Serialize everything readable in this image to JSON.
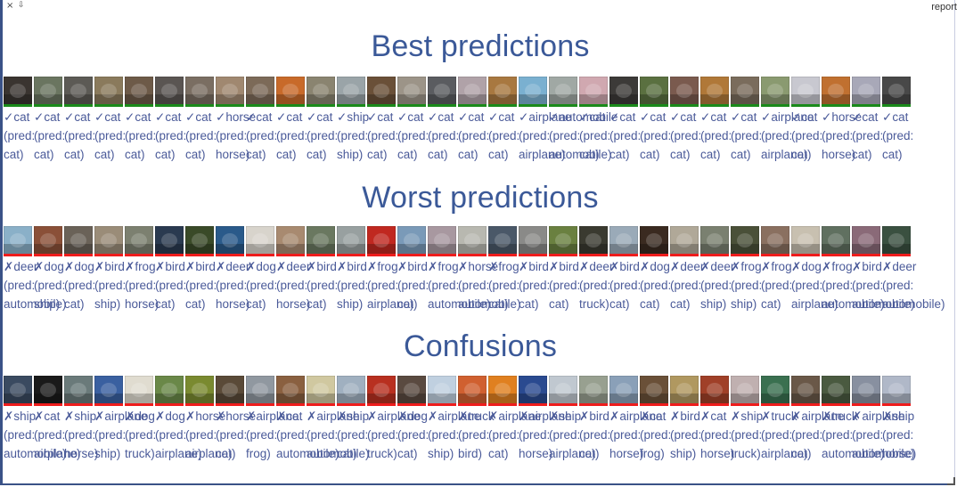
{
  "window": {
    "close_glyph": "×",
    "min_glyph": "⇩",
    "report_label": "report"
  },
  "colors": {
    "accent": "#3b5998",
    "correct_bar": "#1a8a1a",
    "wrong_bar": "#ee1c1c",
    "caption": "#4a5a99"
  },
  "sections": [
    {
      "title": "Best predictions",
      "correct": true,
      "items": [
        {
          "true": "cat",
          "pred": "cat",
          "tone": "#3a3430"
        },
        {
          "true": "cat",
          "pred": "cat",
          "tone": "#6a7560"
        },
        {
          "true": "cat",
          "pred": "cat",
          "tone": "#5c5a55"
        },
        {
          "true": "cat",
          "pred": "cat",
          "tone": "#8a7a5c"
        },
        {
          "true": "cat",
          "pred": "cat",
          "tone": "#6d5a48"
        },
        {
          "true": "cat",
          "pred": "cat",
          "tone": "#5a5552"
        },
        {
          "true": "cat",
          "pred": "cat",
          "tone": "#7a6e62"
        },
        {
          "true": "horse",
          "pred": "horse",
          "tone": "#a08870"
        },
        {
          "true": "cat",
          "pred": "cat",
          "tone": "#7c6a58"
        },
        {
          "true": "cat",
          "pred": "cat",
          "tone": "#c86a2a"
        },
        {
          "true": "cat",
          "pred": "cat",
          "tone": "#8a8470"
        },
        {
          "true": "ship",
          "pred": "ship",
          "tone": "#9aa4a8"
        },
        {
          "true": "cat",
          "pred": "cat",
          "tone": "#6a5038"
        },
        {
          "true": "cat",
          "pred": "cat",
          "tone": "#9c9488"
        },
        {
          "true": "cat",
          "pred": "cat",
          "tone": "#5a5c60"
        },
        {
          "true": "cat",
          "pred": "cat",
          "tone": "#b0a2a8"
        },
        {
          "true": "cat",
          "pred": "cat",
          "tone": "#a87840"
        },
        {
          "true": "airplane",
          "pred": "airplane",
          "tone": "#7ab0d0"
        },
        {
          "true": "automobile",
          "pred": "automobile",
          "tone": "#a0a8a4"
        },
        {
          "true": "cat",
          "pred": "cat",
          "tone": "#d0a8b0"
        },
        {
          "true": "cat",
          "pred": "cat",
          "tone": "#3c3a38"
        },
        {
          "true": "cat",
          "pred": "cat",
          "tone": "#5a7040"
        },
        {
          "true": "cat",
          "pred": "cat",
          "tone": "#7a5a4e"
        },
        {
          "true": "cat",
          "pred": "cat",
          "tone": "#b07838"
        },
        {
          "true": "cat",
          "pred": "cat",
          "tone": "#7a6c5c"
        },
        {
          "true": "airplane",
          "pred": "airplane",
          "tone": "#8a9a70"
        },
        {
          "true": "cat",
          "pred": "cat",
          "tone": "#c8c8d0"
        },
        {
          "true": "horse",
          "pred": "horse",
          "tone": "#c07030"
        },
        {
          "true": "cat",
          "pred": "cat",
          "tone": "#a8a8b8"
        },
        {
          "true": "cat",
          "pred": "cat",
          "tone": "#484848"
        }
      ]
    },
    {
      "title": "Worst predictions",
      "correct": false,
      "items": [
        {
          "true": "deer",
          "pred": "automobile",
          "tone": "#8ab0c8"
        },
        {
          "true": "dog",
          "pred": "ship",
          "tone": "#8a5038"
        },
        {
          "true": "dog",
          "pred": "cat",
          "tone": "#6a6258"
        },
        {
          "true": "bird",
          "pred": "ship",
          "tone": "#9a8c78"
        },
        {
          "true": "frog",
          "pred": "horse",
          "tone": "#7c8070"
        },
        {
          "true": "bird",
          "pred": "cat",
          "tone": "#2a3a50"
        },
        {
          "true": "bird",
          "pred": "cat",
          "tone": "#3a4a28"
        },
        {
          "true": "deer",
          "pred": "horse",
          "tone": "#2a5a8a"
        },
        {
          "true": "dog",
          "pred": "cat",
          "tone": "#d8d4cc"
        },
        {
          "true": "deer",
          "pred": "horse",
          "tone": "#a88a70"
        },
        {
          "true": "bird",
          "pred": "cat",
          "tone": "#6a7860"
        },
        {
          "true": "bird",
          "pred": "ship",
          "tone": "#98a0a0"
        },
        {
          "true": "frog",
          "pred": "airplane",
          "tone": "#c02820"
        },
        {
          "true": "bird",
          "pred": "cat",
          "tone": "#7a9ab8"
        },
        {
          "true": "frog",
          "pred": "automobile",
          "tone": "#a898a0"
        },
        {
          "true": "horse",
          "pred": "automobile",
          "tone": "#b8b8b0"
        },
        {
          "true": "frog",
          "pred": "cat",
          "tone": "#4a5868"
        },
        {
          "true": "bird",
          "pred": "cat",
          "tone": "#8a8a88"
        },
        {
          "true": "bird",
          "pred": "cat",
          "tone": "#6a8040"
        },
        {
          "true": "deer",
          "pred": "truck",
          "tone": "#3a3a30"
        },
        {
          "true": "bird",
          "pred": "cat",
          "tone": "#9aaab8"
        },
        {
          "true": "dog",
          "pred": "cat",
          "tone": "#3a2a20"
        },
        {
          "true": "deer",
          "pred": "cat",
          "tone": "#b0a898"
        },
        {
          "true": "deer",
          "pred": "ship",
          "tone": "#7a8070"
        },
        {
          "true": "frog",
          "pred": "ship",
          "tone": "#4a5038"
        },
        {
          "true": "frog",
          "pred": "cat",
          "tone": "#8a7060"
        },
        {
          "true": "dog",
          "pred": "airplane",
          "tone": "#c8c0b0"
        },
        {
          "true": "frog",
          "pred": "automobile",
          "tone": "#607060"
        },
        {
          "true": "bird",
          "pred": "automobile",
          "tone": "#8a6a78"
        },
        {
          "true": "deer",
          "pred": "automobile",
          "tone": "#3a5040"
        }
      ]
    },
    {
      "title": "Confusions",
      "correct": false,
      "items": [
        {
          "true": "ship",
          "pred": "automobile",
          "tone": "#3a4a60"
        },
        {
          "true": "cat",
          "pred": "airplane",
          "tone": "#1a1a1a"
        },
        {
          "true": "ship",
          "pred": "horse",
          "tone": "#6a7a7a"
        },
        {
          "true": "airplane",
          "pred": "ship",
          "tone": "#3a60a0"
        },
        {
          "true": "dog",
          "pred": "truck",
          "tone": "#e0dcd0"
        },
        {
          "true": "dog",
          "pred": "airplane",
          "tone": "#6a8848"
        },
        {
          "true": "horse",
          "pred": "airplane",
          "tone": "#7a8a30"
        },
        {
          "true": "horse",
          "pred": "cat",
          "tone": "#5a4a38"
        },
        {
          "true": "airplane",
          "pred": "frog",
          "tone": "#9098a0"
        },
        {
          "true": "cat",
          "pred": "automobile",
          "tone": "#8a6040"
        },
        {
          "true": "airplane",
          "pred": "automobile",
          "tone": "#d0c8a0"
        },
        {
          "true": "ship",
          "pred": "cat",
          "tone": "#a0b0c0"
        },
        {
          "true": "airplane",
          "pred": "truck",
          "tone": "#b83020"
        },
        {
          "true": "dog",
          "pred": "cat",
          "tone": "#5a4a40"
        },
        {
          "true": "airplane",
          "pred": "ship",
          "tone": "#c0d0e0"
        },
        {
          "true": "truck",
          "pred": "bird",
          "tone": "#d06030"
        },
        {
          "true": "airplane",
          "pred": "cat",
          "tone": "#e08020"
        },
        {
          "true": "airplane",
          "pred": "horse",
          "tone": "#2a4a90"
        },
        {
          "true": "ship",
          "pred": "airplane",
          "tone": "#c0c8d0"
        },
        {
          "true": "bird",
          "pred": "cat",
          "tone": "#98a090"
        },
        {
          "true": "airplane",
          "pred": "horse",
          "tone": "#8aa0b8"
        },
        {
          "true": "cat",
          "pred": "frog",
          "tone": "#6a5038"
        },
        {
          "true": "bird",
          "pred": "ship",
          "tone": "#b09860"
        },
        {
          "true": "cat",
          "pred": "horse",
          "tone": "#a04028"
        },
        {
          "true": "ship",
          "pred": "truck",
          "tone": "#c0b0b0"
        },
        {
          "true": "truck",
          "pred": "airplane",
          "tone": "#3a7050"
        },
        {
          "true": "airplane",
          "pred": "cat",
          "tone": "#6a5848"
        },
        {
          "true": "truck",
          "pred": "automobile",
          "tone": "#4a5a40"
        },
        {
          "true": "airplane",
          "pred": "automobile",
          "tone": "#8890a0"
        },
        {
          "true": "ship",
          "pred": "horse",
          "tone": "#b0b8c8"
        }
      ]
    }
  ]
}
